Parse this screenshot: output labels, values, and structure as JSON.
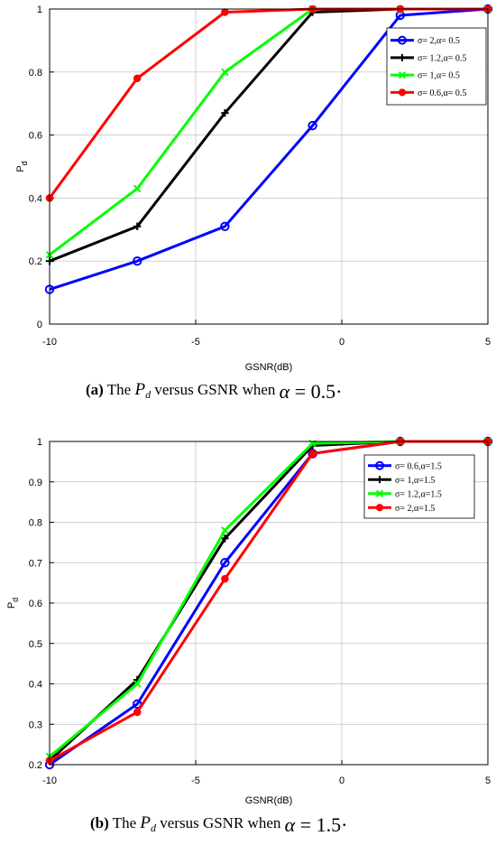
{
  "chart_data": [
    {
      "type": "line",
      "panel": "a",
      "x": [
        -10,
        -7,
        -4,
        -1,
        2,
        5
      ],
      "xlim": [
        -10,
        5
      ],
      "ylim": [
        0,
        1
      ],
      "xticks": [
        "-10",
        "-5",
        "0",
        "5"
      ],
      "yticks": [
        "0",
        "0.2",
        "0.4",
        "0.6",
        "0.8",
        "1"
      ],
      "xlabel": "GSNR(dB)",
      "ylabel": "P",
      "ylabel_sub": "d",
      "grid": true,
      "legend_position": "top-right",
      "series": [
        {
          "name": "σ= 2,α= 0.5",
          "color": "#0000ff",
          "marker": "circle",
          "values": [
            0.11,
            0.2,
            0.31,
            0.63,
            0.98,
            1.0
          ]
        },
        {
          "name": "σ= 1.2,α= 0.5",
          "color": "#000000",
          "marker": "plus",
          "values": [
            0.2,
            0.31,
            0.67,
            0.99,
            1.0,
            1.0
          ]
        },
        {
          "name": "σ= 1,α= 0.5",
          "color": "#00ff00",
          "marker": "x",
          "values": [
            0.22,
            0.43,
            0.8,
            1.0,
            1.0,
            1.0
          ]
        },
        {
          "name": "σ= 0.6,α= 0.5",
          "color": "#ff0000",
          "marker": "dot",
          "values": [
            0.4,
            0.78,
            0.99,
            1.0,
            1.0,
            1.0
          ]
        }
      ],
      "caption": {
        "label": "(a)",
        "pre": " The ",
        "sym": "P",
        "sub": "d",
        "mid": " versus GSNR when ",
        "alpha": "α",
        "eq": " = 0.5",
        "dot": "·"
      }
    },
    {
      "type": "line",
      "panel": "b",
      "x": [
        -10,
        -7,
        -4,
        -1,
        2,
        5
      ],
      "xlim": [
        -10,
        5
      ],
      "ylim": [
        0.2,
        1
      ],
      "xticks": [
        "-10",
        "-5",
        "0",
        "5"
      ],
      "yticks": [
        "0.2",
        "0.3",
        "0.4",
        "0.5",
        "0.6",
        "0.7",
        "0.8",
        "0.9",
        "1"
      ],
      "xlabel": "GSNR(dB)",
      "ylabel": "P",
      "ylabel_sub": "d",
      "grid": true,
      "legend_position": "top-right",
      "series": [
        {
          "name": "σ= 0.6,α=1.5",
          "color": "#0000ff",
          "marker": "circle",
          "values": [
            0.2,
            0.35,
            0.7,
            0.97,
            1.0,
            1.0
          ]
        },
        {
          "name": "σ= 1,α=1.5",
          "color": "#000000",
          "marker": "plus",
          "values": [
            0.21,
            0.41,
            0.76,
            0.99,
            1.0,
            1.0
          ]
        },
        {
          "name": "σ= 1.2,α=1.5",
          "color": "#00ff00",
          "marker": "x",
          "values": [
            0.22,
            0.4,
            0.78,
            0.995,
            1.0,
            1.0
          ]
        },
        {
          "name": "σ= 2,α=1.5",
          "color": "#ff0000",
          "marker": "dot",
          "values": [
            0.21,
            0.33,
            0.66,
            0.97,
            1.0,
            1.0
          ]
        }
      ],
      "caption": {
        "label": "(b)",
        "pre": " The ",
        "sym": "P",
        "sub": "d",
        "mid": " versus GSNR when ",
        "alpha": "α",
        "eq": " = 1.5",
        "dot": "·"
      }
    }
  ]
}
